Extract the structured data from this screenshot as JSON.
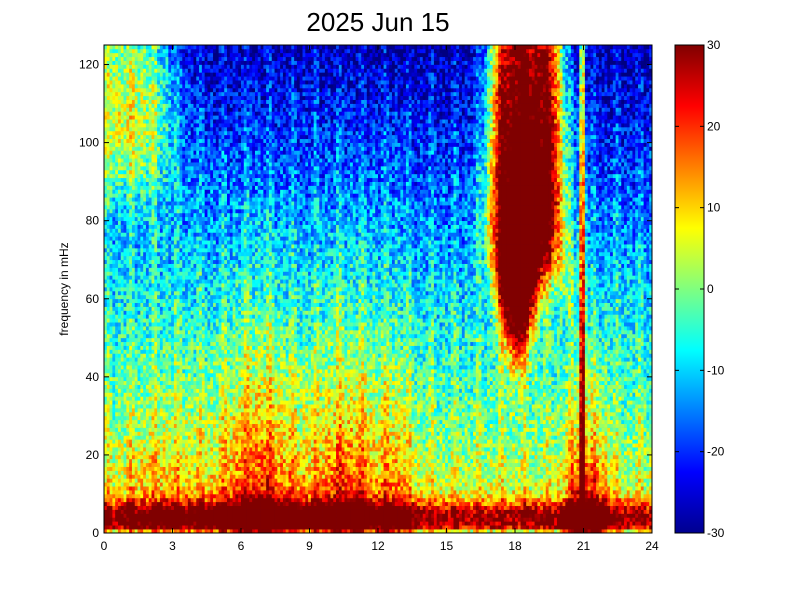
{
  "chart_data": {
    "type": "heatmap",
    "title": "2025 Jun 15",
    "xlabel": "",
    "ylabel": "frequency in mHz",
    "xlim": [
      0,
      24
    ],
    "ylim": [
      0,
      125
    ],
    "xticks": [
      0,
      3,
      6,
      9,
      12,
      15,
      18,
      21,
      24
    ],
    "yticks": [
      0,
      20,
      40,
      60,
      80,
      100,
      120
    ],
    "colorbar": {
      "colormap": "jet",
      "clim": [
        -30,
        30
      ],
      "ticks": [
        -30,
        -20,
        -10,
        0,
        10,
        20,
        30
      ]
    },
    "grid": false,
    "features": [
      {
        "desc": "persistent intense band near 0-8 mHz across the day, strongest 5-9 h",
        "x_range": [
          0,
          24
        ],
        "y_range": [
          0,
          8
        ],
        "level": 28
      },
      {
        "desc": "broadband activity plume",
        "x_range": [
          5,
          8.5
        ],
        "y_range": [
          0,
          60
        ],
        "level": 15
      },
      {
        "desc": "broadband activity plume",
        "x_range": [
          9.5,
          12
        ],
        "y_range": [
          0,
          60
        ],
        "level": 12
      },
      {
        "desc": "high-frequency saturation block",
        "x_range": [
          17,
          20
        ],
        "y_range": [
          60,
          125
        ],
        "level": 30
      },
      {
        "desc": "narrow vertical streak",
        "x_range": [
          20.8,
          21.1
        ],
        "y_range": [
          0,
          125
        ],
        "level": 0
      },
      {
        "desc": "low-frequency burst",
        "x_range": [
          20.5,
          22
        ],
        "y_range": [
          0,
          35
        ],
        "level": 25
      }
    ]
  }
}
